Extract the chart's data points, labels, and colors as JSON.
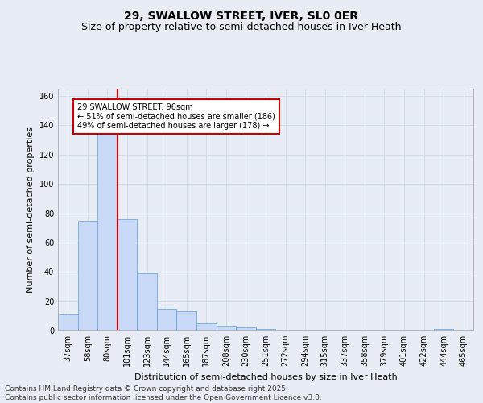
{
  "title": "29, SWALLOW STREET, IVER, SL0 0ER",
  "subtitle": "Size of property relative to semi-detached houses in Iver Heath",
  "xlabel": "Distribution of semi-detached houses by size in Iver Heath",
  "ylabel": "Number of semi-detached properties",
  "categories": [
    "37sqm",
    "58sqm",
    "80sqm",
    "101sqm",
    "123sqm",
    "144sqm",
    "165sqm",
    "187sqm",
    "208sqm",
    "230sqm",
    "251sqm",
    "272sqm",
    "294sqm",
    "315sqm",
    "337sqm",
    "358sqm",
    "379sqm",
    "401sqm",
    "422sqm",
    "444sqm",
    "465sqm"
  ],
  "values": [
    11,
    75,
    134,
    76,
    39,
    15,
    13,
    5,
    3,
    2,
    1,
    0,
    0,
    0,
    0,
    0,
    0,
    0,
    0,
    1,
    0
  ],
  "bar_color": "#c9daf8",
  "bar_edge_color": "#6fa8dc",
  "vline_color": "#cc0000",
  "vline_x_index": 2.5,
  "annotation_title": "29 SWALLOW STREET: 96sqm",
  "annotation_line1": "← 51% of semi-detached houses are smaller (186)",
  "annotation_line2": "49% of semi-detached houses are larger (178) →",
  "annotation_box_facecolor": "#ffffff",
  "annotation_box_edgecolor": "#cc0000",
  "ylim": [
    0,
    165
  ],
  "yticks": [
    0,
    20,
    40,
    60,
    80,
    100,
    120,
    140,
    160
  ],
  "grid_color": "#d0dce8",
  "background_color": "#e8edf5",
  "footer_line1": "Contains HM Land Registry data © Crown copyright and database right 2025.",
  "footer_line2": "Contains public sector information licensed under the Open Government Licence v3.0.",
  "title_fontsize": 10,
  "subtitle_fontsize": 9,
  "tick_fontsize": 7,
  "ylabel_fontsize": 8,
  "xlabel_fontsize": 8,
  "footer_fontsize": 6.5
}
